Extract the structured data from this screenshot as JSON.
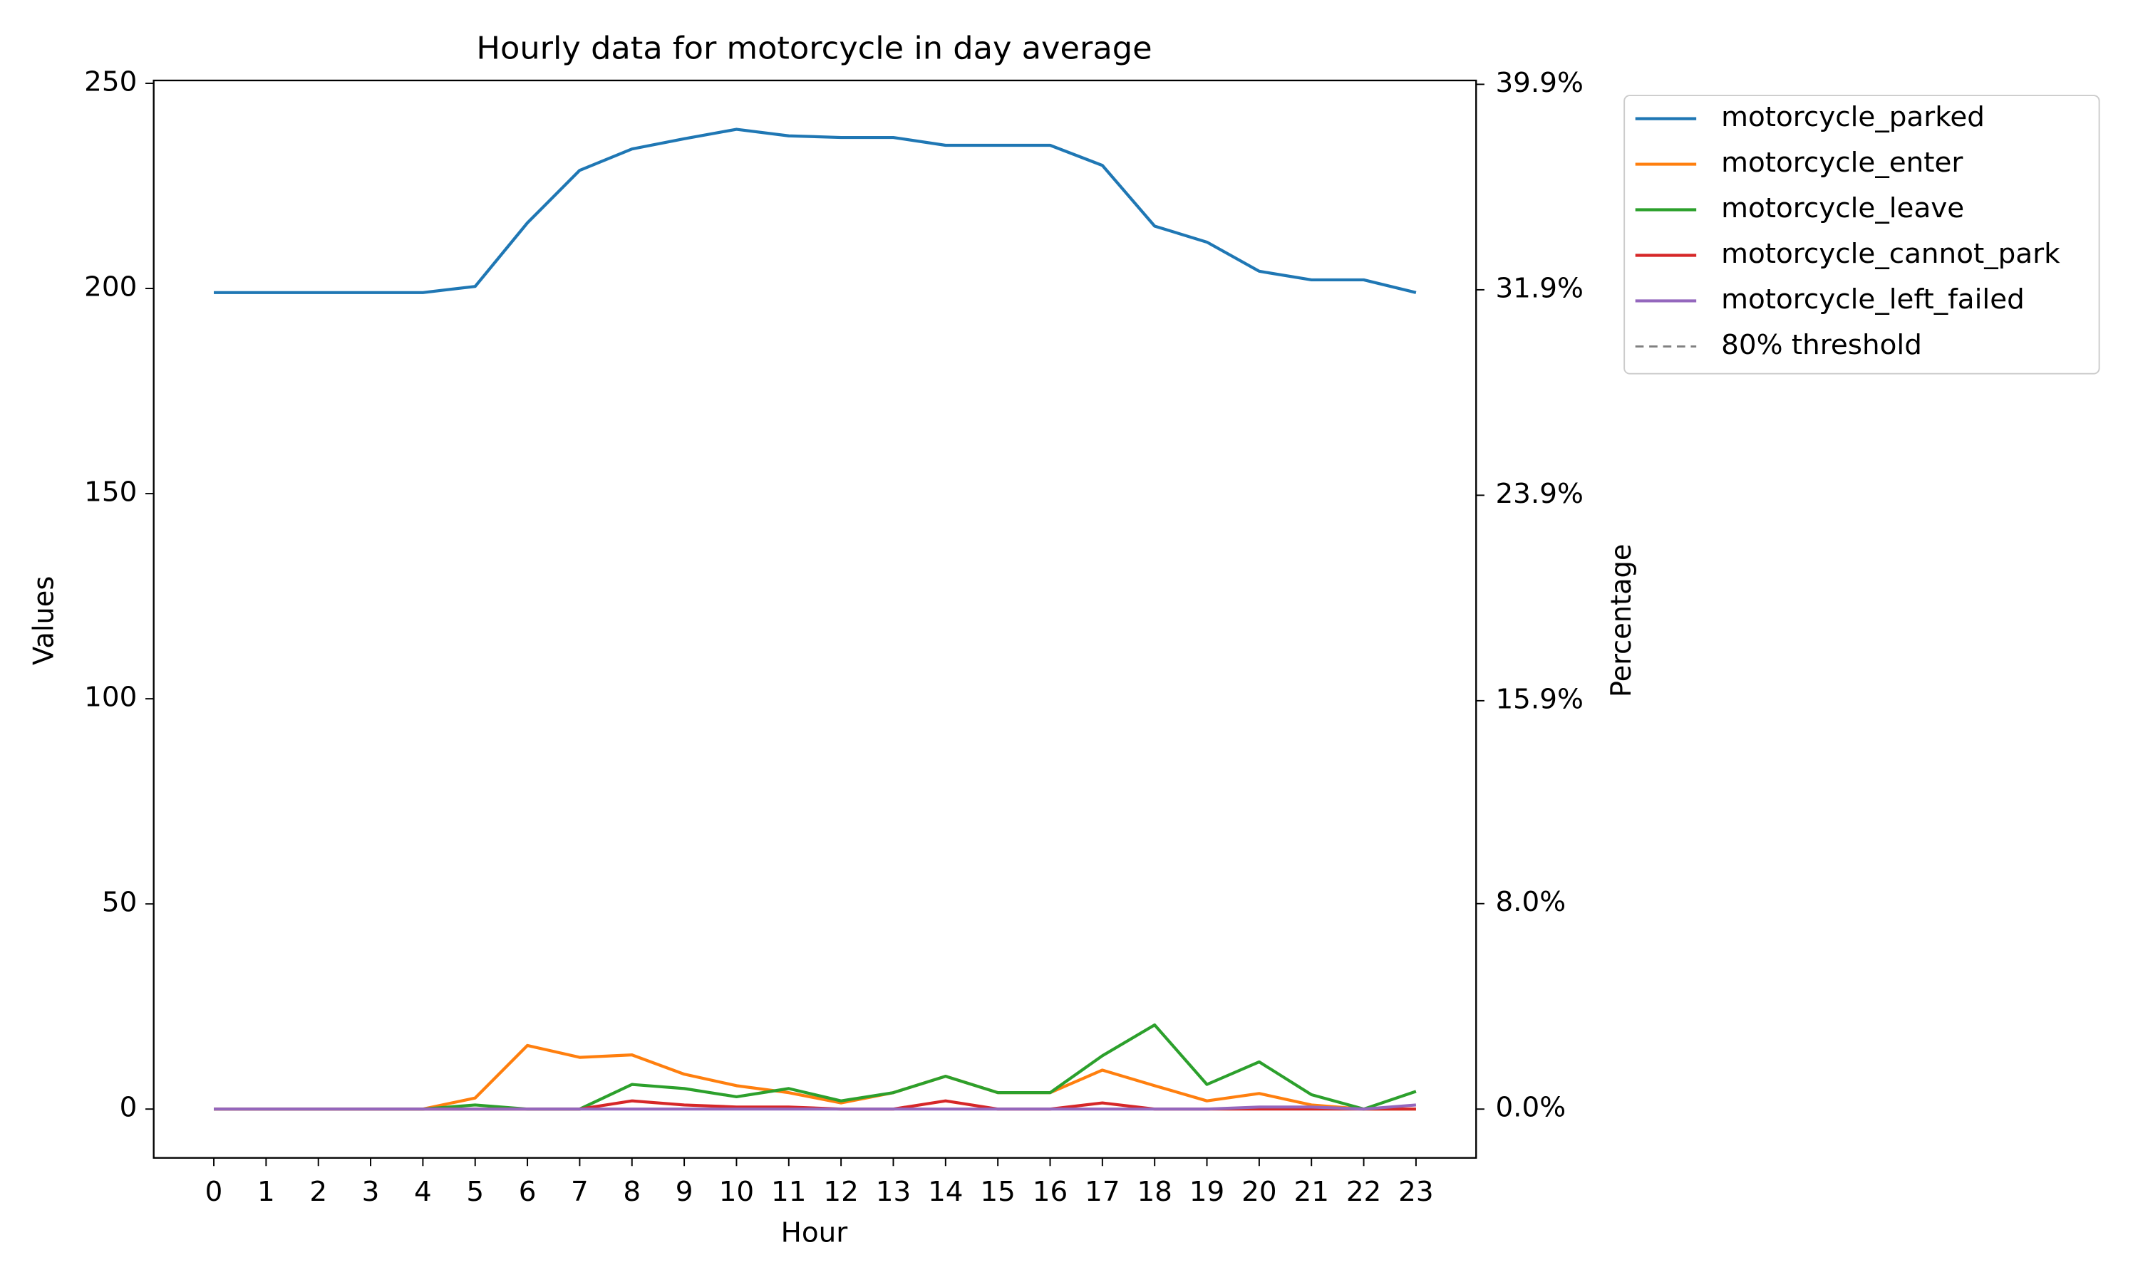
{
  "chart_data": {
    "type": "line",
    "title": "Hourly data for motorcycle in day average",
    "x_label": "Hour",
    "y_label": "Values",
    "y2_label": "Percentage",
    "x": [
      0,
      1,
      2,
      3,
      4,
      5,
      6,
      7,
      8,
      9,
      10,
      11,
      12,
      13,
      14,
      15,
      16,
      17,
      18,
      19,
      20,
      21,
      22,
      23
    ],
    "xlim": [
      -1.15,
      24.15
    ],
    "xticks": [
      0,
      1,
      2,
      3,
      4,
      5,
      6,
      7,
      8,
      9,
      10,
      11,
      12,
      13,
      14,
      15,
      16,
      17,
      18,
      19,
      20,
      21,
      22,
      23
    ],
    "ylim": [
      -11.9,
      250.7
    ],
    "yticks": [
      0,
      50,
      100,
      150,
      200,
      250
    ],
    "y2lim": [
      -1.9,
      40.05
    ],
    "y2ticks": [
      {
        "value": 0,
        "label": "0.0%"
      },
      {
        "value": 8.0,
        "label": "8.0%"
      },
      {
        "value": 15.9,
        "label": "15.9%"
      },
      {
        "value": 23.9,
        "label": "23.9%"
      },
      {
        "value": 31.9,
        "label": "31.9%"
      },
      {
        "value": 39.9,
        "label": "39.9%"
      }
    ],
    "legend": "outside-upper-right",
    "series": [
      {
        "name": "motorcycle_parked",
        "color": "#1f77b4",
        "values": [
          199,
          199,
          199,
          199,
          199,
          200.5,
          216,
          228.8,
          234,
          236.5,
          238.8,
          237.2,
          236.8,
          236.8,
          234.9,
          234.9,
          234.9,
          230,
          215.2,
          211.3,
          204.2,
          202.1,
          202.1,
          199
        ]
      },
      {
        "name": "motorcycle_enter",
        "color": "#ff7f0e",
        "values": [
          0,
          0,
          0,
          0,
          0,
          2.7,
          15.5,
          12.6,
          13.2,
          8.5,
          5.7,
          4,
          1.5,
          4,
          8,
          4,
          4,
          9.5,
          5.7,
          2,
          3.8,
          1,
          0,
          0
        ]
      },
      {
        "name": "motorcycle_leave",
        "color": "#2ca02c",
        "values": [
          0,
          0,
          0,
          0,
          0,
          1,
          0,
          0,
          6,
          5,
          3,
          5,
          2,
          4,
          8,
          4,
          4,
          13,
          20.5,
          6,
          11.5,
          3.5,
          0,
          4.3
        ]
      },
      {
        "name": "motorcycle_cannot_park",
        "color": "#d62728",
        "values": [
          0,
          0,
          0,
          0,
          0,
          0,
          0,
          0,
          2,
          1,
          0.5,
          0.5,
          0,
          0,
          2,
          0,
          0,
          1.5,
          0,
          0,
          0,
          0,
          0,
          0
        ]
      },
      {
        "name": "motorcycle_left_failed",
        "color": "#9467bd",
        "values": [
          0,
          0,
          0,
          0,
          0,
          0,
          0,
          0,
          0,
          0,
          0,
          0,
          0,
          0,
          0,
          0,
          0,
          0,
          0,
          0,
          0.5,
          0.5,
          0,
          1
        ]
      }
    ],
    "hlines": [
      {
        "name": "80% threshold",
        "value": 80,
        "axis": "y2",
        "color": "#808080",
        "dashed": true
      }
    ]
  }
}
